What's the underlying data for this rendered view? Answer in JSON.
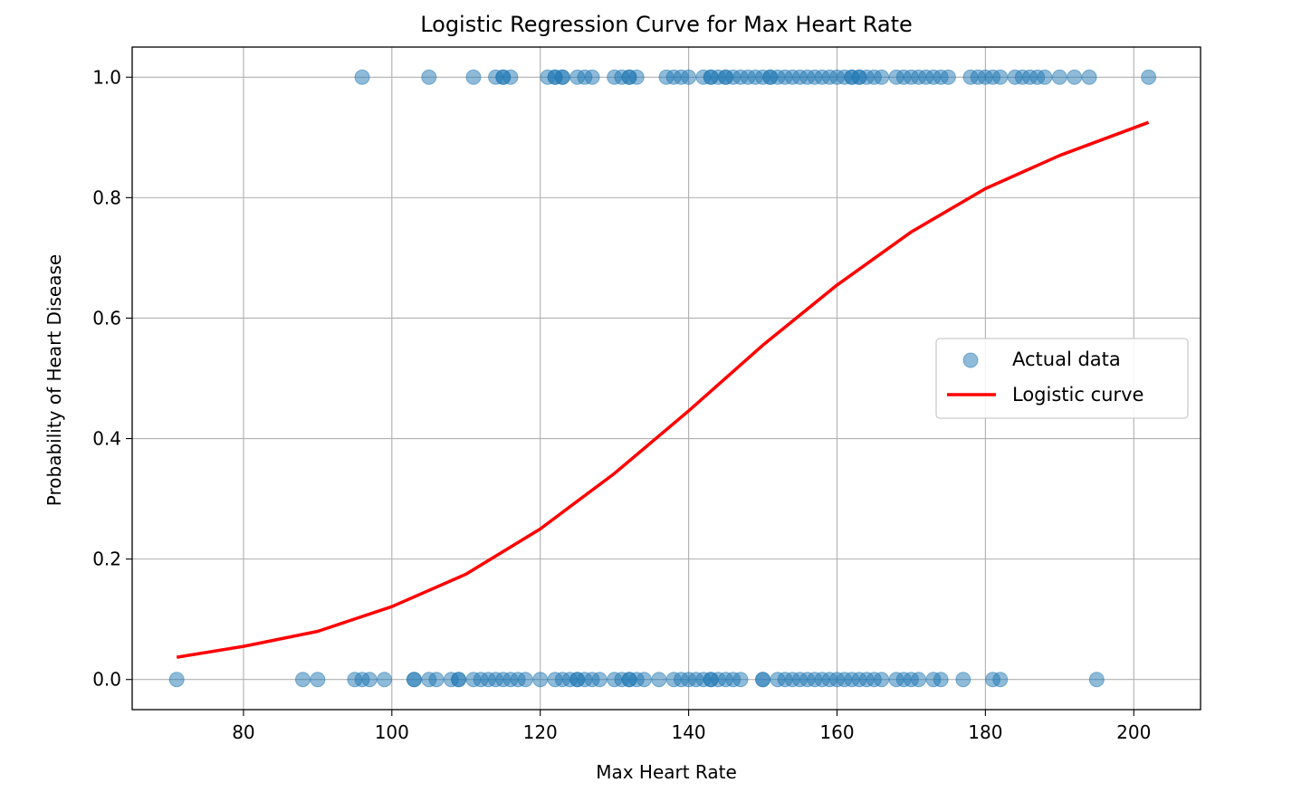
{
  "chart_data": {
    "type": "scatter",
    "title": "Logistic Regression Curve for Max Heart Rate",
    "xlabel": "Max Heart Rate",
    "ylabel": "Probability of Heart Disease",
    "xlim": [
      65,
      209
    ],
    "ylim": [
      -0.05,
      1.05
    ],
    "xticks": [
      80,
      100,
      120,
      140,
      160,
      180,
      200
    ],
    "xtick_labels": [
      "80",
      "100",
      "120",
      "140",
      "160",
      "180",
      "200"
    ],
    "yticks": [
      0.0,
      0.2,
      0.4,
      0.6,
      0.8,
      1.0
    ],
    "ytick_labels": [
      "0.0",
      "0.2",
      "0.4",
      "0.6",
      "0.8",
      "1.0"
    ],
    "grid": true,
    "legend_position": "center-right",
    "series": [
      {
        "name": "Actual data",
        "kind": "scatter",
        "color": "#1f77b4",
        "alpha": 0.5,
        "points": [
          [
            96,
            1
          ],
          [
            105,
            1
          ],
          [
            111,
            1
          ],
          [
            114,
            1
          ],
          [
            115,
            1
          ],
          [
            115,
            1
          ],
          [
            116,
            1
          ],
          [
            121,
            1
          ],
          [
            122,
            1
          ],
          [
            122,
            1
          ],
          [
            123,
            1
          ],
          [
            123,
            1
          ],
          [
            125,
            1
          ],
          [
            126,
            1
          ],
          [
            127,
            1
          ],
          [
            130,
            1
          ],
          [
            131,
            1
          ],
          [
            132,
            1
          ],
          [
            132,
            1
          ],
          [
            133,
            1
          ],
          [
            137,
            1
          ],
          [
            138,
            1
          ],
          [
            139,
            1
          ],
          [
            140,
            1
          ],
          [
            142,
            1
          ],
          [
            143,
            1
          ],
          [
            143,
            1
          ],
          [
            144,
            1
          ],
          [
            145,
            1
          ],
          [
            145,
            1
          ],
          [
            146,
            1
          ],
          [
            147,
            1
          ],
          [
            148,
            1
          ],
          [
            149,
            1
          ],
          [
            150,
            1
          ],
          [
            151,
            1
          ],
          [
            151,
            1
          ],
          [
            152,
            1
          ],
          [
            153,
            1
          ],
          [
            154,
            1
          ],
          [
            155,
            1
          ],
          [
            156,
            1
          ],
          [
            157,
            1
          ],
          [
            158,
            1
          ],
          [
            159,
            1
          ],
          [
            160,
            1
          ],
          [
            161,
            1
          ],
          [
            162,
            1
          ],
          [
            162,
            1
          ],
          [
            163,
            1
          ],
          [
            163,
            1
          ],
          [
            164,
            1
          ],
          [
            165,
            1
          ],
          [
            166,
            1
          ],
          [
            168,
            1
          ],
          [
            169,
            1
          ],
          [
            170,
            1
          ],
          [
            171,
            1
          ],
          [
            172,
            1
          ],
          [
            173,
            1
          ],
          [
            174,
            1
          ],
          [
            175,
            1
          ],
          [
            178,
            1
          ],
          [
            179,
            1
          ],
          [
            180,
            1
          ],
          [
            181,
            1
          ],
          [
            182,
            1
          ],
          [
            184,
            1
          ],
          [
            185,
            1
          ],
          [
            186,
            1
          ],
          [
            187,
            1
          ],
          [
            188,
            1
          ],
          [
            190,
            1
          ],
          [
            192,
            1
          ],
          [
            194,
            1
          ],
          [
            202,
            1
          ],
          [
            71,
            0
          ],
          [
            88,
            0
          ],
          [
            90,
            0
          ],
          [
            95,
            0
          ],
          [
            96,
            0
          ],
          [
            97,
            0
          ],
          [
            99,
            0
          ],
          [
            103,
            0
          ],
          [
            103,
            0
          ],
          [
            105,
            0
          ],
          [
            106,
            0
          ],
          [
            108,
            0
          ],
          [
            109,
            0
          ],
          [
            109,
            0
          ],
          [
            111,
            0
          ],
          [
            112,
            0
          ],
          [
            113,
            0
          ],
          [
            114,
            0
          ],
          [
            115,
            0
          ],
          [
            116,
            0
          ],
          [
            117,
            0
          ],
          [
            118,
            0
          ],
          [
            120,
            0
          ],
          [
            122,
            0
          ],
          [
            123,
            0
          ],
          [
            124,
            0
          ],
          [
            125,
            0
          ],
          [
            125,
            0
          ],
          [
            126,
            0
          ],
          [
            127,
            0
          ],
          [
            128,
            0
          ],
          [
            130,
            0
          ],
          [
            131,
            0
          ],
          [
            132,
            0
          ],
          [
            132,
            0
          ],
          [
            133,
            0
          ],
          [
            134,
            0
          ],
          [
            136,
            0
          ],
          [
            138,
            0
          ],
          [
            139,
            0
          ],
          [
            140,
            0
          ],
          [
            141,
            0
          ],
          [
            142,
            0
          ],
          [
            143,
            0
          ],
          [
            143,
            0
          ],
          [
            144,
            0
          ],
          [
            145,
            0
          ],
          [
            146,
            0
          ],
          [
            147,
            0
          ],
          [
            150,
            0
          ],
          [
            150,
            0
          ],
          [
            152,
            0
          ],
          [
            153,
            0
          ],
          [
            154,
            0
          ],
          [
            155,
            0
          ],
          [
            156,
            0
          ],
          [
            157,
            0
          ],
          [
            158,
            0
          ],
          [
            159,
            0
          ],
          [
            160,
            0
          ],
          [
            161,
            0
          ],
          [
            162,
            0
          ],
          [
            163,
            0
          ],
          [
            164,
            0
          ],
          [
            165,
            0
          ],
          [
            166,
            0
          ],
          [
            168,
            0
          ],
          [
            169,
            0
          ],
          [
            170,
            0
          ],
          [
            171,
            0
          ],
          [
            173,
            0
          ],
          [
            174,
            0
          ],
          [
            177,
            0
          ],
          [
            181,
            0
          ],
          [
            182,
            0
          ],
          [
            195,
            0
          ]
        ]
      },
      {
        "name": "Logistic curve",
        "kind": "line",
        "color": "#ff0000",
        "points": [
          [
            71,
            0.037
          ],
          [
            80,
            0.055
          ],
          [
            90,
            0.08
          ],
          [
            100,
            0.121
          ],
          [
            110,
            0.175
          ],
          [
            120,
            0.25
          ],
          [
            130,
            0.342
          ],
          [
            140,
            0.446
          ],
          [
            150,
            0.555
          ],
          [
            160,
            0.655
          ],
          [
            170,
            0.743
          ],
          [
            180,
            0.815
          ],
          [
            190,
            0.87
          ],
          [
            202,
            0.925
          ]
        ]
      }
    ]
  }
}
